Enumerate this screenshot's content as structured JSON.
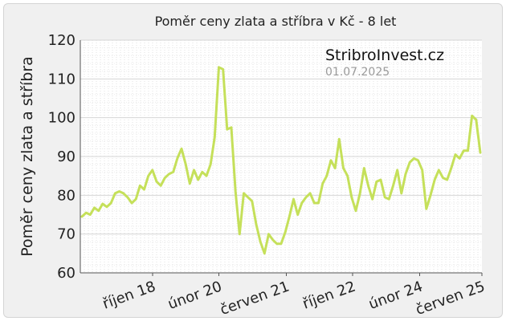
{
  "chart_data": {
    "type": "line",
    "title": "Poměr ceny zlata a stříbra v Kč - 8 let",
    "ylabel": "Poměr ceny zlata a stříbra",
    "ylim": [
      60,
      120
    ],
    "yticks": [
      "60",
      "70",
      "80",
      "90",
      "100",
      "110",
      "120"
    ],
    "xticks": [
      {
        "label": "říjen 18",
        "at": 0.18
      },
      {
        "label": "únor 20",
        "at": 0.345
      },
      {
        "label": "červen 21",
        "at": 0.513
      },
      {
        "label": "říjen 22",
        "at": 0.678
      },
      {
        "label": "únor 24",
        "at": 0.845
      },
      {
        "label": "červen 25",
        "at": 1.0
      }
    ],
    "watermark": "StribroInvest.cz",
    "date": "01.07.2025",
    "grid": true,
    "legend": "none",
    "line_color": "#c5e05a",
    "series": [
      {
        "values": [
          74.5,
          75.5,
          75.0,
          76.8,
          76.0,
          77.8,
          77.0,
          78.0,
          80.5,
          81.0,
          80.5,
          79.5,
          78.0,
          79.0,
          82.5,
          81.5,
          85.0,
          86.5,
          83.5,
          82.5,
          84.5,
          85.5,
          86.0,
          89.5,
          92.0,
          88.0,
          83.0,
          86.5,
          84.0,
          86.0,
          85.0,
          88.0,
          95.0,
          113.0,
          112.5,
          97.0,
          97.5,
          81.0,
          70.0,
          80.5,
          79.5,
          78.5,
          72.5,
          68.0,
          65.0,
          70.0,
          68.5,
          67.5,
          67.5,
          70.5,
          74.5,
          79.0,
          75.0,
          78.0,
          79.5,
          80.5,
          78.0,
          78.0,
          83.0,
          85.0,
          89.0,
          87.0,
          94.5,
          87.0,
          85.0,
          79.5,
          76.0,
          80.5,
          87.0,
          82.5,
          79.0,
          83.5,
          84.0,
          79.5,
          79.0,
          82.5,
          86.5,
          80.5,
          85.5,
          88.5,
          89.5,
          89.0,
          86.5,
          76.5,
          80.0,
          84.0,
          86.5,
          84.5,
          84.0,
          87.0,
          90.5,
          89.5,
          91.5,
          91.5,
          100.5,
          99.5,
          91.0
        ]
      }
    ]
  }
}
